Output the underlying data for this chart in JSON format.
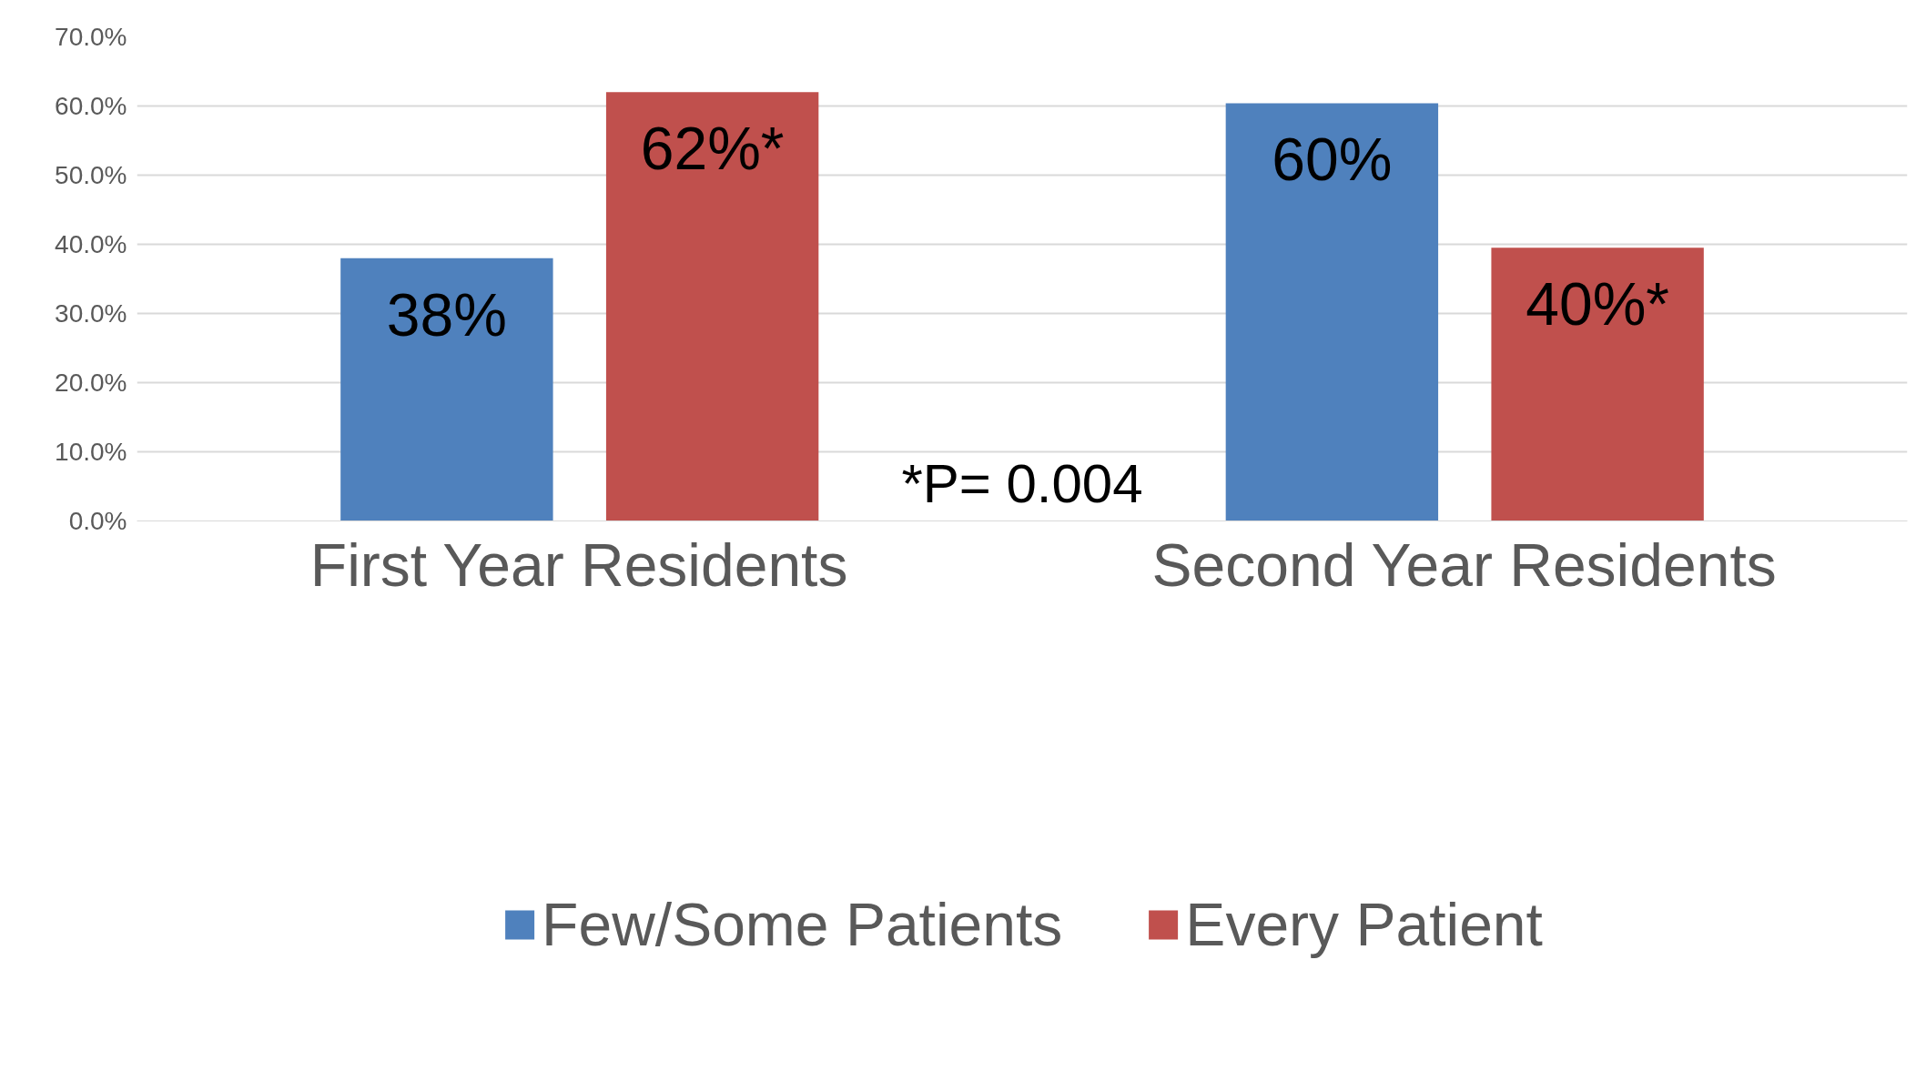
{
  "chart_data": {
    "type": "bar",
    "categories": [
      "First Year Residents",
      "Second Year Residents"
    ],
    "series": [
      {
        "name": "Few/Some Patients",
        "color": "#4f81bd",
        "values": [
          38,
          60.4
        ],
        "value_labels": [
          "38%",
          "60%"
        ]
      },
      {
        "name": "Every Patient",
        "color": "#c0504d",
        "values": [
          62,
          39.5
        ],
        "value_labels": [
          "62%*",
          "40%*"
        ]
      }
    ],
    "ylim": [
      0,
      70
    ],
    "yticks": [
      {
        "value": 0,
        "label": "0.0%"
      },
      {
        "value": 10,
        "label": "10.0%"
      },
      {
        "value": 20,
        "label": "20.0%"
      },
      {
        "value": 30,
        "label": "30.0%"
      },
      {
        "value": 40,
        "label": "40.0%"
      },
      {
        "value": 50,
        "label": "50.0%"
      },
      {
        "value": 60,
        "label": "60.0%"
      },
      {
        "value": 70,
        "label": "70.0%"
      }
    ],
    "grid": "y",
    "legend": "bottom",
    "annotations": [
      "*P= 0.004"
    ]
  }
}
